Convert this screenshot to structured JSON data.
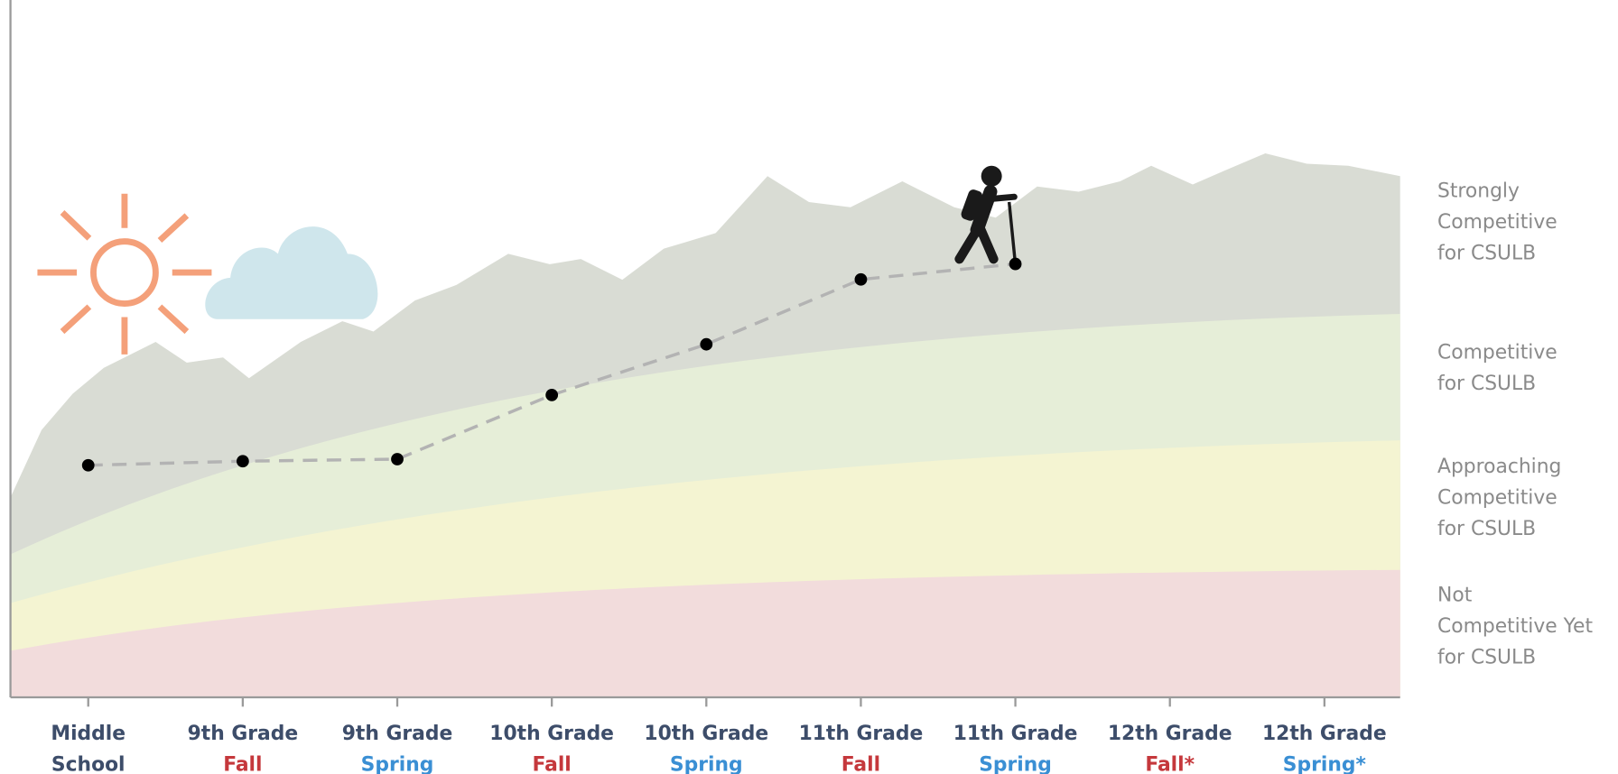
{
  "chart_data": {
    "type": "line",
    "categories": [
      "Middle",
      "9th Grade",
      "9th Grade",
      "10th Grade",
      "10th Grade",
      "11th Grade",
      "11th Grade",
      "12th Grade",
      "12th Grade"
    ],
    "category_terms": [
      "School",
      "Fall",
      "Spring",
      "Fall",
      "Spring",
      "Fall",
      "Spring",
      "Fall*",
      "Spring*"
    ],
    "category_color": "#3d4d6a",
    "term_colors": [
      "#3d4d6a",
      "#c5383c",
      "#3a8fd4",
      "#c5383c",
      "#3a8fd4",
      "#c5383c",
      "#3a8fd4",
      "#c5383c",
      "#3a8fd4"
    ],
    "values": [
      34.2,
      34.8,
      35.1,
      44.6,
      52.1,
      61.7,
      64.0,
      null,
      null
    ],
    "color": "#b3b3b3",
    "point_color": "#000000",
    "ylim": [
      0,
      100
    ],
    "bands": [
      {
        "lines": [
          "Strongly",
          "Competitive",
          "for CSULB"
        ],
        "color": "#d9dcd4"
      },
      {
        "lines": [
          "Competitive",
          "for CSULB"
        ],
        "color": "#e6eed8"
      },
      {
        "lines": [
          "Approaching",
          "Competitive",
          "for CSULB"
        ],
        "color": "#f4f4d2"
      },
      {
        "lines": [
          "Not",
          "Competitive Yet",
          "for CSULB"
        ],
        "color": "#f2dcdc"
      }
    ]
  }
}
